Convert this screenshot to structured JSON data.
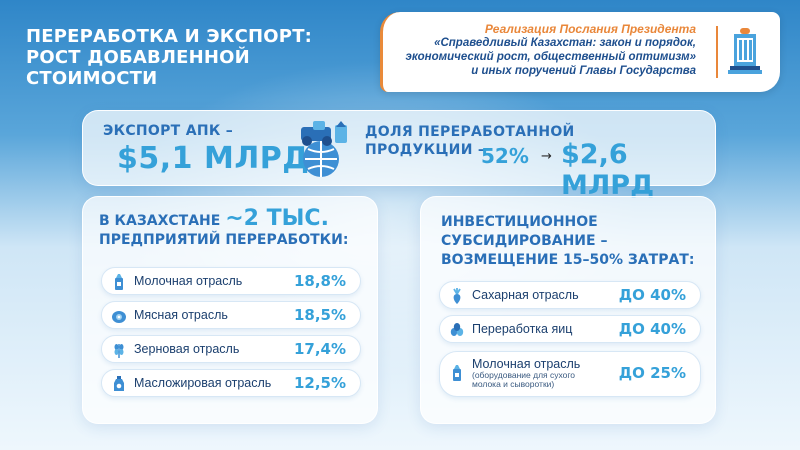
{
  "title": {
    "line1": "ПЕРЕРАБОТКА И ЭКСПОРТ:",
    "line2": "РОСТ ДОБАВЛЕННОЙ",
    "line3": "СТОИМОСТИ"
  },
  "banner": {
    "heading": "Реализация Послания Президента",
    "line1": "«Справедливый Казахстан: закон и порядок,",
    "line2": "экономический рост, общественный оптимизм»",
    "line3": "и иных поручений Главы Государства",
    "logo_icon": "government-building-icon"
  },
  "export": {
    "label": "ЭКСПОРТ АПК –",
    "value": "$5,1 МЛРД",
    "icon": "tractor-globe-icon"
  },
  "share": {
    "label_line1": "ДОЛЯ ПЕРЕРАБОТАННОЙ",
    "label_line2": "ПРОДУКЦИИ –",
    "percent": "52%",
    "arrow": "→",
    "value": "$2,6 МЛРД"
  },
  "processing": {
    "head_prefix": "В КАЗАХСТАНЕ",
    "head_big": "~2 ТЫС.",
    "head_line2": "ПРЕДПРИЯТИЙ ПЕРЕРАБОТКИ:",
    "items": [
      {
        "name": "Молочная отрасль",
        "value": "18,8%",
        "icon": "milk-icon"
      },
      {
        "name": "Мясная отрасль",
        "value": "18,5%",
        "icon": "meat-icon"
      },
      {
        "name": "Зерновая отрасль",
        "value": "17,4%",
        "icon": "wheat-icon"
      },
      {
        "name": "Масложировая отрасль",
        "value": "12,5%",
        "icon": "oil-bottle-icon"
      }
    ]
  },
  "subsidy": {
    "head_line1": "ИНВЕСТИЦИОННОЕ",
    "head_line2": "СУБСИДИРОВАНИЕ –",
    "head_line3": "ВОЗМЕЩЕНИЕ 15–50% ЗАТРАТ:",
    "items": [
      {
        "name": "Сахарная отрасль",
        "value": "ДО 40%",
        "icon": "sugar-beet-icon"
      },
      {
        "name": "Переработка яиц",
        "value": "ДО 40%",
        "icon": "eggs-icon"
      },
      {
        "name": "Молочная отрасль",
        "note_line1": "(оборудование для сухого",
        "note_line2": "молока и сыворотки)",
        "value": "ДО 25%",
        "icon": "milk-icon"
      }
    ]
  },
  "colors": {
    "accent": "#35a1d9",
    "heading": "#2a6fb7",
    "banner_highlight": "#e9873a"
  }
}
